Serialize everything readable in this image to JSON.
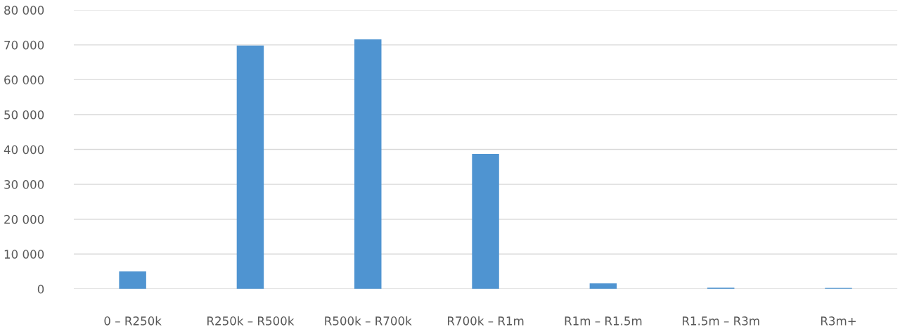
{
  "chart_data": {
    "type": "bar",
    "categories": [
      "0 – R250k",
      "R250k – R500k",
      "R500k – R700k",
      "R700k – R1m",
      "R1m – R1.5m",
      "R1.5m – R3m",
      "R3m+"
    ],
    "values": [
      5000,
      69800,
      71600,
      38700,
      1600,
      400,
      300
    ],
    "color": "#4f94d1",
    "ylim": [
      0,
      80000
    ],
    "yticks": [
      {
        "value": 0,
        "label": "0"
      },
      {
        "value": 10000,
        "label": "10 000"
      },
      {
        "value": 20000,
        "label": "20 000"
      },
      {
        "value": 30000,
        "label": "30 000"
      },
      {
        "value": 40000,
        "label": "40 000"
      },
      {
        "value": 50000,
        "label": "50 000"
      },
      {
        "value": 60000,
        "label": "60 000"
      },
      {
        "value": 70000,
        "label": "70 000"
      },
      {
        "value": 80000,
        "label": "80 000"
      }
    ],
    "grid": "y"
  }
}
